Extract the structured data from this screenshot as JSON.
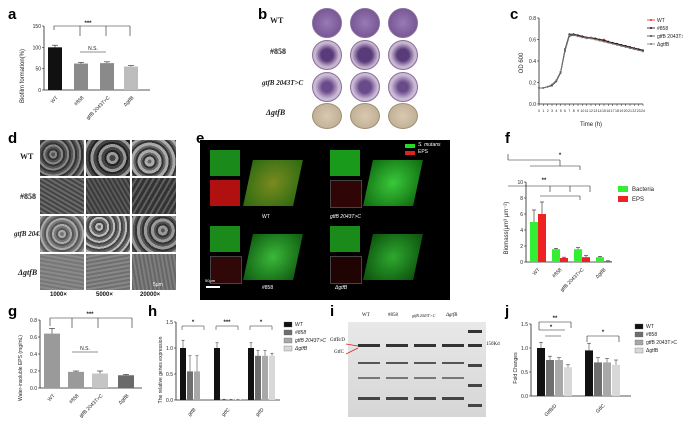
{
  "figure": {
    "panel_labels": [
      "a",
      "b",
      "c",
      "d",
      "e",
      "f",
      "g",
      "h",
      "i",
      "j"
    ],
    "strains": [
      "WT",
      "#858",
      "gtfB 2043T>C",
      "ΔgtfB"
    ]
  },
  "panel_a": {
    "ylabel": "Biofilm formation(%)",
    "ticks": [
      "0",
      "50",
      "100",
      "150"
    ],
    "sig_top": "***",
    "sig_ns": "N.S.",
    "categories": [
      "WT",
      "#858",
      "gtfB 2043T>C",
      "ΔgtfB"
    ]
  },
  "panel_b": {
    "rows": [
      "WT",
      "#858",
      "gtfB 2043T>C",
      "ΔgtfB"
    ]
  },
  "panel_c": {
    "ylabel": "OD 600",
    "xlabel": "Time (h)",
    "yticks": [
      "0.0",
      "0.2",
      "0.4",
      "0.6",
      "0.8"
    ],
    "legend": [
      "WT",
      "#858",
      "gtfB 2043T>C",
      "ΔgtfB"
    ]
  },
  "panel_d": {
    "rows": [
      "WT",
      "#858",
      "gtfB 2043T>C",
      "ΔgtfB"
    ],
    "cols": [
      "1000×",
      "5000×",
      "20000×"
    ],
    "scalebar": "5μm"
  },
  "panel_e": {
    "legend": [
      "S. mutans",
      "EPS"
    ],
    "labels": [
      "WT",
      "gtfB 2043T>C",
      "#858",
      "ΔgtfB"
    ],
    "scalebar": "50μm"
  },
  "panel_f": {
    "ylabel": "Biomass(μm³ μm⁻²)",
    "yticks": [
      "0",
      "2",
      "4",
      "6",
      "8",
      "10"
    ],
    "legend": [
      "Bacteria",
      "EPS"
    ],
    "sig1": "*",
    "sig2": "**",
    "categories": [
      "WT",
      "#858",
      "gtfB 2043T>C",
      "ΔgtfB"
    ],
    "colors": {
      "bacteria": "#33ee33",
      "eps": "#ee2222"
    }
  },
  "panel_g": {
    "ylabel": "Water-insoluble EPS (mg/mL)",
    "yticks": [
      "0.0",
      "0.2",
      "0.4",
      "0.6",
      "0.8"
    ],
    "sig_top": "***",
    "sig_ns": "N.S.",
    "categories": [
      "WT",
      "#858",
      "gtfB 2043T>C",
      "ΔgtfB"
    ]
  },
  "panel_h": {
    "ylabel": "The relative genes expression",
    "yticks": [
      "0.0",
      "0.5",
      "1.0",
      "1.5"
    ],
    "genes": [
      "gtfB",
      "gtfC",
      "gtfD"
    ],
    "sig": [
      "*",
      "***",
      "*"
    ],
    "legend": [
      "WT",
      "#858",
      "gtfB 2043T>C",
      "ΔgtfB"
    ]
  },
  "panel_i": {
    "lanes": [
      "WT",
      "#858",
      "gtfB 2043T>C",
      "ΔgtfB"
    ],
    "band_labels": [
      "GtfB/D",
      "GtfC"
    ],
    "marker": "150Kd"
  },
  "panel_j": {
    "ylabel": "Fold Changes",
    "yticks": [
      "0.0",
      "0.5",
      "1.0",
      "1.5"
    ],
    "genes": [
      "GtfB/D",
      "GtfC"
    ],
    "sig": [
      "**",
      "*",
      "*"
    ],
    "legend": [
      "WT",
      "#858",
      "gtfB 2043T>C",
      "ΔgtfB"
    ]
  },
  "chart_data": [
    {
      "type": "bar",
      "panel": "a",
      "categories": [
        "WT",
        "#858",
        "gtfB 2043T>C",
        "ΔgtfB"
      ],
      "values": [
        100,
        62,
        63,
        55
      ],
      "errors": [
        5,
        3,
        3,
        2
      ],
      "ylabel": "Biofilm formation(%)",
      "ylim": [
        0,
        150
      ]
    },
    {
      "type": "line",
      "panel": "c",
      "x": [
        0,
        1,
        2,
        3,
        4,
        5,
        6,
        7,
        8,
        9,
        10,
        11,
        12,
        13,
        14,
        15,
        16,
        17,
        18,
        19,
        20,
        21,
        22,
        23,
        24
      ],
      "series": [
        {
          "name": "WT",
          "values": [
            0.15,
            0.15,
            0.16,
            0.18,
            0.22,
            0.3,
            0.5,
            0.64,
            0.64,
            0.63,
            0.63,
            0.62,
            0.62,
            0.61,
            0.6,
            0.6,
            0.58,
            0.57,
            0.56,
            0.55,
            0.54,
            0.53,
            0.52,
            0.51,
            0.5
          ]
        },
        {
          "name": "#858",
          "values": [
            0.15,
            0.15,
            0.16,
            0.18,
            0.22,
            0.3,
            0.51,
            0.65,
            0.65,
            0.64,
            0.63,
            0.62,
            0.61,
            0.61,
            0.6,
            0.59,
            0.58,
            0.57,
            0.56,
            0.55,
            0.54,
            0.53,
            0.52,
            0.51,
            0.5
          ]
        },
        {
          "name": "gtfB 2043T>C",
          "values": [
            0.15,
            0.15,
            0.16,
            0.17,
            0.21,
            0.29,
            0.49,
            0.63,
            0.64,
            0.63,
            0.62,
            0.62,
            0.61,
            0.6,
            0.59,
            0.58,
            0.57,
            0.56,
            0.55,
            0.54,
            0.53,
            0.52,
            0.51,
            0.5,
            0.49
          ]
        },
        {
          "name": "ΔgtfB",
          "values": [
            0.15,
            0.15,
            0.16,
            0.18,
            0.22,
            0.3,
            0.5,
            0.64,
            0.64,
            0.63,
            0.62,
            0.61,
            0.61,
            0.6,
            0.59,
            0.58,
            0.57,
            0.56,
            0.55,
            0.54,
            0.53,
            0.52,
            0.51,
            0.5,
            0.49
          ]
        }
      ],
      "xlabel": "Time (h)",
      "ylabel": "OD 600",
      "ylim": [
        0,
        0.8
      ],
      "xlim": [
        0,
        24
      ]
    },
    {
      "type": "bar",
      "panel": "f",
      "categories": [
        "WT",
        "#858",
        "gtfB 2043T>C",
        "ΔgtfB"
      ],
      "series": [
        {
          "name": "Bacteria",
          "values": [
            5.0,
            1.6,
            1.6,
            0.6
          ],
          "errors": [
            1.5,
            0.1,
            0.2,
            0.1
          ]
        },
        {
          "name": "EPS",
          "values": [
            6.0,
            0.5,
            0.6,
            0.1
          ],
          "errors": [
            1.5,
            0.1,
            0.2,
            0.05
          ]
        }
      ],
      "ylabel": "Biomass(μm³ μm⁻²)",
      "ylim": [
        0,
        10
      ]
    },
    {
      "type": "bar",
      "panel": "g",
      "categories": [
        "WT",
        "#858",
        "gtfB 2043T>C",
        "ΔgtfB"
      ],
      "values": [
        0.64,
        0.19,
        0.17,
        0.15
      ],
      "errors": [
        0.06,
        0.01,
        0.03,
        0.01
      ],
      "ylabel": "Water-insoluble EPS (mg/mL)",
      "ylim": [
        0,
        0.8
      ]
    },
    {
      "type": "bar",
      "panel": "h",
      "categories": [
        "gtfB",
        "gtfC",
        "gtfD"
      ],
      "series": [
        {
          "name": "WT",
          "values": [
            1.0,
            1.0,
            1.0
          ],
          "errors": [
            0.15,
            0.1,
            0.1
          ]
        },
        {
          "name": "#858",
          "values": [
            0.55,
            0.01,
            0.85
          ],
          "errors": [
            0.3,
            0.005,
            0.1
          ]
        },
        {
          "name": "gtfB 2043T>C",
          "values": [
            0.55,
            0.01,
            0.85
          ],
          "errors": [
            0.3,
            0.005,
            0.1
          ]
        },
        {
          "name": "ΔgtfB",
          "values": [
            0.0,
            0.01,
            0.85
          ],
          "errors": [
            0.0,
            0.005,
            0.05
          ]
        }
      ],
      "ylabel": "The relative genes expression",
      "ylim": [
        0,
        1.5
      ]
    },
    {
      "type": "bar",
      "panel": "j",
      "categories": [
        "GtfB/D",
        "GtfC"
      ],
      "series": [
        {
          "name": "WT",
          "values": [
            1.0,
            0.95
          ],
          "errors": [
            0.12,
            0.15
          ]
        },
        {
          "name": "#858",
          "values": [
            0.75,
            0.7
          ],
          "errors": [
            0.08,
            0.1
          ]
        },
        {
          "name": "gtfB 2043T>C",
          "values": [
            0.75,
            0.7
          ],
          "errors": [
            0.05,
            0.08
          ]
        },
        {
          "name": "ΔgtfB",
          "values": [
            0.6,
            0.65
          ],
          "errors": [
            0.05,
            0.1
          ]
        }
      ],
      "ylabel": "Fold Changes",
      "ylim": [
        0,
        1.5
      ]
    }
  ]
}
